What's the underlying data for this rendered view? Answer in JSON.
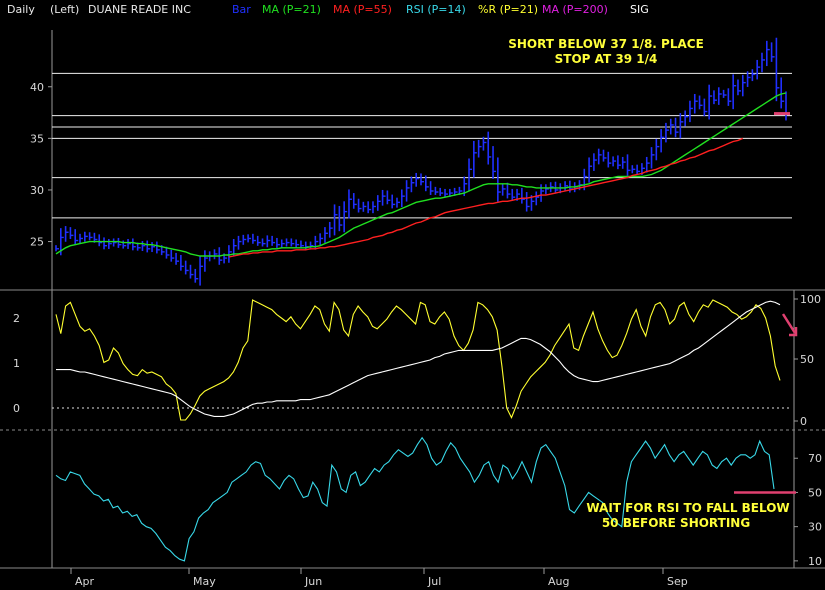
{
  "header": {
    "period": "Daily",
    "scale": "(Left)",
    "symbol_name": "DUANE READE INC",
    "legend": [
      {
        "label": "Bar",
        "color": "#2030ff"
      },
      {
        "label": "MA (P=21)",
        "color": "#20e020"
      },
      {
        "label": "MA (P=55)",
        "color": "#ff2020"
      },
      {
        "label": "RSI (P=14)",
        "color": "#38d8e8"
      },
      {
        "label": "%R (P=21)",
        "color": "#ffff30"
      },
      {
        "label": "MA (P=200)",
        "color": "#e020e0"
      },
      {
        "label": "SIG",
        "color": "#ffffff"
      }
    ]
  },
  "colors": {
    "background": "#000000",
    "bars": "#2030ff",
    "ma21": "#20e020",
    "ma55": "#ff2020",
    "rsi": "#38d8e8",
    "pctR": "#ffff30",
    "sig": "#ffffff",
    "marker": "#e04070",
    "note": "#ffff3a"
  },
  "chart_data": [
    {
      "type": "line",
      "panel": "price",
      "xlabel_months": [
        "Apr",
        "May",
        "Jun",
        "Jul",
        "Aug",
        "Sep"
      ],
      "ylim": [
        20.5,
        45.5
      ],
      "yticks": [
        25,
        30,
        35,
        40
      ],
      "horizontal_lines": [
        41.3,
        37.2,
        36.1,
        35.0,
        31.2,
        27.3
      ],
      "close": [
        24.3,
        25.4,
        25.9,
        25.6,
        25.1,
        25.3,
        25.5,
        25.4,
        25.2,
        24.9,
        24.6,
        24.8,
        24.9,
        24.7,
        24.6,
        24.8,
        24.5,
        24.4,
        24.6,
        24.3,
        24.5,
        24.2,
        24.0,
        23.7,
        23.4,
        23.1,
        22.6,
        22.2,
        21.8,
        21.4,
        22.6,
        23.4,
        23.6,
        23.8,
        23.2,
        23.4,
        24.0,
        24.6,
        25.0,
        25.2,
        25.3,
        25.1,
        24.9,
        24.8,
        25.1,
        24.9,
        24.7,
        24.8,
        24.9,
        24.8,
        24.7,
        24.6,
        24.5,
        24.6,
        25.0,
        25.3,
        25.8,
        26.3,
        27.6,
        26.6,
        27.9,
        29.1,
        28.6,
        28.2,
        28.4,
        28.1,
        28.4,
        28.9,
        29.4,
        29.0,
        28.6,
        28.8,
        29.4,
        30.2,
        30.7,
        31.1,
        30.8,
        30.3,
        29.9,
        29.8,
        29.7,
        29.6,
        29.7,
        29.8,
        29.9,
        30.6,
        32.0,
        33.6,
        34.2,
        34.6,
        33.2,
        31.8,
        29.8,
        30.1,
        29.6,
        29.3,
        29.6,
        29.1,
        28.4,
        28.9,
        29.3,
        29.9,
        30.1,
        30.3,
        30.0,
        30.2,
        30.4,
        30.1,
        30.3,
        30.5,
        31.3,
        32.3,
        32.9,
        33.4,
        33.1,
        32.6,
        32.8,
        32.4,
        32.7,
        31.9,
        32.0,
        31.8,
        32.1,
        32.6,
        33.4,
        34.2,
        35.1,
        35.8,
        36.3,
        35.6,
        36.6,
        37.1,
        37.9,
        38.6,
        38.2,
        37.6,
        39.1,
        38.7,
        39.3,
        39.2,
        38.6,
        40.1,
        39.6,
        40.4,
        40.9,
        41.2,
        41.9,
        42.6,
        43.6,
        42.9,
        39.9,
        38.6,
        37.4
      ],
      "series": [
        {
          "name": "MA (P=21)",
          "from": 0,
          "values": [
            23.8,
            24.1,
            24.4,
            24.6,
            24.7,
            24.8,
            24.9,
            25.0,
            25.0,
            25.0,
            25.0,
            25.0,
            25.0,
            25.0,
            24.9,
            24.9,
            24.9,
            24.8,
            24.8,
            24.7,
            24.7,
            24.6,
            24.5,
            24.4,
            24.3,
            24.2,
            24.1,
            24.0,
            23.8,
            23.7,
            23.6,
            23.6,
            23.6,
            23.6,
            23.6,
            23.7,
            23.7,
            23.8,
            23.8,
            23.9,
            24.0,
            24.1,
            24.1,
            24.2,
            24.2,
            24.3,
            24.3,
            24.4,
            24.4,
            24.4,
            24.4,
            24.4,
            24.4,
            24.5,
            24.5,
            24.6,
            24.8,
            25.0,
            25.2,
            25.4,
            25.7,
            26.0,
            26.3,
            26.5,
            26.7,
            26.9,
            27.1,
            27.3,
            27.5,
            27.7,
            27.8,
            28.0,
            28.2,
            28.4,
            28.6,
            28.8,
            28.9,
            29.0,
            29.1,
            29.2,
            29.2,
            29.3,
            29.4,
            29.5,
            29.6,
            29.7,
            29.9,
            30.1,
            30.3,
            30.5,
            30.6,
            30.6,
            30.6,
            30.6,
            30.6,
            30.5,
            30.5,
            30.4,
            30.3,
            30.3,
            30.2,
            30.2,
            30.2,
            30.2,
            30.2,
            30.2,
            30.2,
            30.3,
            30.3,
            30.4,
            30.5,
            30.6,
            30.8,
            30.9,
            31.0,
            31.1,
            31.2,
            31.3,
            31.3,
            31.3,
            31.3,
            31.3,
            31.3,
            31.4,
            31.5,
            31.7,
            31.9,
            32.2,
            32.5,
            32.8,
            33.1,
            33.4,
            33.7,
            34.0,
            34.3,
            34.6,
            34.9,
            35.2,
            35.5,
            35.8,
            36.1,
            36.4,
            36.7,
            37.0,
            37.3,
            37.6,
            37.9,
            38.2,
            38.5,
            38.8,
            39.1,
            39.3,
            39.4
          ]
        },
        {
          "name": "MA (P=55)",
          "from": 36,
          "values": [
            23.5,
            23.6,
            23.7,
            23.8,
            23.8,
            23.9,
            23.9,
            24.0,
            24.0,
            24.0,
            24.1,
            24.1,
            24.1,
            24.1,
            24.2,
            24.2,
            24.2,
            24.3,
            24.3,
            24.4,
            24.4,
            24.5,
            24.5,
            24.6,
            24.7,
            24.8,
            24.9,
            25.0,
            25.1,
            25.2,
            25.4,
            25.5,
            25.6,
            25.8,
            25.9,
            26.1,
            26.2,
            26.4,
            26.6,
            26.8,
            26.9,
            27.1,
            27.3,
            27.4,
            27.6,
            27.8,
            27.9,
            28.0,
            28.1,
            28.2,
            28.3,
            28.4,
            28.5,
            28.6,
            28.7,
            28.7,
            28.8,
            28.9,
            28.9,
            29.0,
            29.1,
            29.2,
            29.2,
            29.3,
            29.4,
            29.5,
            29.5,
            29.6,
            29.7,
            29.8,
            29.9,
            30.0,
            30.1,
            30.2,
            30.3,
            30.4,
            30.5,
            30.6,
            30.7,
            30.8,
            30.9,
            31.0,
            31.1,
            31.2,
            31.4,
            31.5,
            31.6,
            31.8,
            31.9,
            32.0,
            32.2,
            32.3,
            32.5,
            32.6,
            32.8,
            32.9,
            33.1,
            33.2,
            33.4,
            33.6,
            33.8,
            33.9,
            34.1,
            34.3,
            34.5,
            34.7,
            34.8,
            35.0
          ]
        }
      ],
      "annotations": [
        "SHORT BELOW 37 1/8. PLACE",
        "STOP AT 39 1/4"
      ]
    },
    {
      "type": "line",
      "panel": "oscillator",
      "left_ticks": [
        "2",
        "1",
        "0"
      ],
      "right_ticks": [
        "100",
        "50",
        "0"
      ],
      "ylim": [
        0,
        100
      ],
      "series": [
        {
          "name": "%R (P=21)",
          "values": [
            88,
            72,
            95,
            98,
            88,
            78,
            74,
            76,
            70,
            62,
            48,
            50,
            60,
            56,
            47,
            42,
            38,
            37,
            42,
            39,
            40,
            38,
            36,
            30,
            27,
            22,
            0,
            0,
            5,
            12,
            20,
            24,
            26,
            28,
            30,
            32,
            35,
            40,
            48,
            60,
            66,
            100,
            98,
            96,
            94,
            92,
            88,
            85,
            82,
            86,
            80,
            76,
            82,
            88,
            95,
            92,
            80,
            74,
            98,
            92,
            75,
            70,
            88,
            95,
            90,
            86,
            78,
            76,
            80,
            84,
            90,
            95,
            92,
            88,
            84,
            80,
            98,
            96,
            82,
            80,
            86,
            90,
            84,
            70,
            62,
            58,
            64,
            75,
            98,
            96,
            92,
            86,
            75,
            45,
            10,
            2,
            12,
            24,
            30,
            36,
            40,
            44,
            48,
            54,
            62,
            68,
            74,
            80,
            60,
            58,
            70,
            80,
            90,
            76,
            66,
            58,
            52,
            54,
            62,
            72,
            84,
            92,
            78,
            70,
            86,
            96,
            98,
            92,
            80,
            84,
            95,
            98,
            88,
            82,
            90,
            96,
            94,
            100,
            98,
            96,
            94,
            90,
            88,
            84,
            86,
            90,
            96,
            93,
            85,
            70,
            45,
            33
          ]
        },
        {
          "name": "SIG",
          "values": [
            42,
            42,
            42,
            42,
            41,
            40,
            40,
            39,
            38,
            37,
            36,
            35,
            34,
            33,
            32,
            31,
            30,
            29,
            28,
            27,
            26,
            25,
            24,
            23,
            22,
            20,
            17,
            14,
            11,
            9,
            7,
            5,
            4,
            3,
            3,
            3,
            4,
            5,
            7,
            9,
            11,
            13,
            14,
            14,
            15,
            15,
            16,
            16,
            16,
            16,
            16,
            17,
            17,
            17,
            18,
            19,
            20,
            21,
            23,
            25,
            27,
            29,
            31,
            33,
            35,
            37,
            38,
            39,
            40,
            41,
            42,
            43,
            44,
            45,
            46,
            47,
            48,
            49,
            50,
            52,
            53,
            55,
            56,
            57,
            58,
            58,
            58,
            58,
            58,
            58,
            58,
            58,
            59,
            60,
            62,
            64,
            66,
            68,
            68,
            67,
            65,
            63,
            60,
            57,
            53,
            49,
            44,
            40,
            37,
            35,
            34,
            33,
            32,
            32,
            33,
            34,
            35,
            36,
            37,
            38,
            39,
            40,
            41,
            42,
            43,
            44,
            45,
            46,
            47,
            49,
            51,
            53,
            55,
            58,
            60,
            63,
            66,
            69,
            72,
            75,
            78,
            81,
            84,
            87,
            90,
            92,
            94,
            96,
            98,
            99,
            98,
            96
          ]
        }
      ]
    },
    {
      "type": "line",
      "panel": "rsi",
      "yticks": [
        10,
        30,
        50,
        70
      ],
      "ylim": [
        7,
        83
      ],
      "horizontal_lines": [
        50
      ],
      "series": [
        {
          "name": "RSI (P=14)",
          "values": [
            60,
            58,
            57,
            62,
            61,
            60,
            55,
            52,
            49,
            48,
            45,
            46,
            41,
            42,
            38,
            39,
            36,
            37,
            32,
            30,
            29,
            26,
            22,
            18,
            16,
            13,
            11,
            10,
            23,
            27,
            35,
            38,
            40,
            44,
            46,
            48,
            50,
            56,
            58,
            60,
            62,
            66,
            68,
            67,
            60,
            58,
            55,
            52,
            57,
            60,
            58,
            52,
            47,
            48,
            56,
            52,
            44,
            42,
            66,
            62,
            52,
            50,
            60,
            62,
            54,
            56,
            60,
            64,
            62,
            66,
            68,
            72,
            75,
            73,
            71,
            73,
            78,
            82,
            78,
            70,
            66,
            68,
            74,
            79,
            76,
            70,
            66,
            62,
            56,
            60,
            66,
            68,
            60,
            56,
            66,
            64,
            58,
            62,
            68,
            62,
            56,
            68,
            76,
            78,
            74,
            70,
            62,
            54,
            40,
            38,
            42,
            46,
            50,
            48,
            46,
            44,
            38,
            34,
            32,
            30,
            56,
            68,
            72,
            76,
            80,
            76,
            70,
            74,
            78,
            72,
            68,
            72,
            74,
            70,
            66,
            70,
            74,
            72,
            66,
            64,
            68,
            70,
            66,
            70,
            72,
            72,
            70,
            72,
            80,
            74,
            72,
            52
          ]
        }
      ],
      "annotations": [
        "WAIT FOR RSI TO FALL BELOW",
        "50 BEFORE SHORTING"
      ]
    }
  ]
}
